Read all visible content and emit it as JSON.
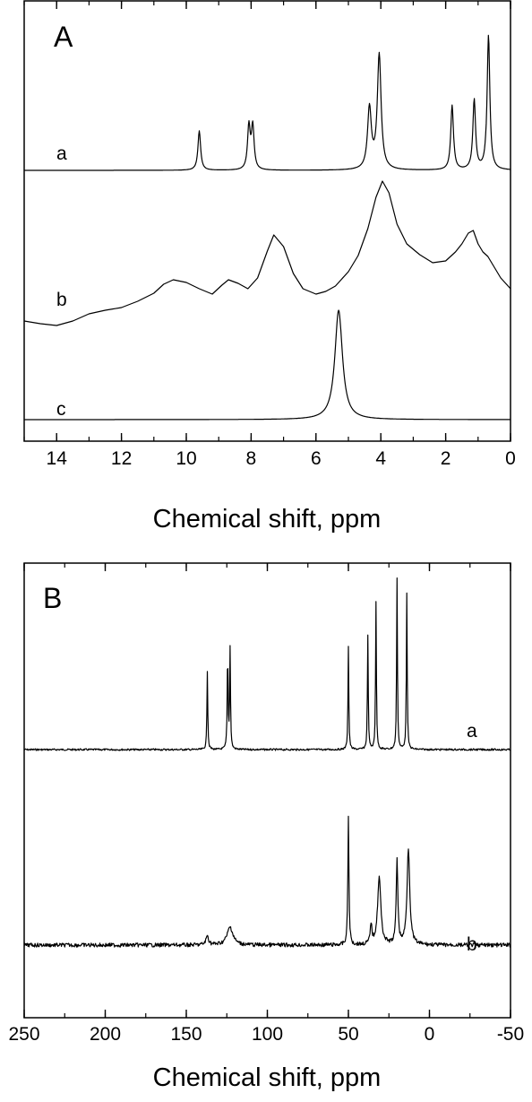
{
  "chart_data": [
    {
      "type": "line",
      "panel": "A",
      "xlabel": "Chemical shift, ppm",
      "ylabel": "",
      "xlim": [
        15,
        0
      ],
      "x_reversed": true,
      "x_ticks": [
        14,
        12,
        10,
        8,
        6,
        4,
        2,
        0
      ],
      "x_minor_step": 1,
      "grid": false,
      "series": [
        {
          "name": "a",
          "baseline": 0,
          "peaks": [
            {
              "x": 9.6,
              "h": 44,
              "w": 0.05
            },
            {
              "x": 8.07,
              "h": 48,
              "w": 0.05
            },
            {
              "x": 7.95,
              "h": 48,
              "w": 0.05
            },
            {
              "x": 4.35,
              "h": 68,
              "w": 0.07
            },
            {
              "x": 4.05,
              "h": 128,
              "w": 0.07
            },
            {
              "x": 1.8,
              "h": 72,
              "w": 0.05
            },
            {
              "x": 1.12,
              "h": 78,
              "w": 0.05
            },
            {
              "x": 0.68,
              "h": 150,
              "w": 0.05
            }
          ]
        },
        {
          "name": "b",
          "profile": [
            [
              15,
              358
            ],
            [
              14.5,
              361
            ],
            [
              14,
              363
            ],
            [
              13.5,
              358
            ],
            [
              13,
              350
            ],
            [
              12.5,
              346
            ],
            [
              12,
              343
            ],
            [
              11.5,
              336
            ],
            [
              11,
              327
            ],
            [
              10.7,
              317
            ],
            [
              10.4,
              312
            ],
            [
              10.0,
              315
            ],
            [
              9.6,
              322
            ],
            [
              9.2,
              328
            ],
            [
              8.9,
              318
            ],
            [
              8.7,
              312
            ],
            [
              8.4,
              316
            ],
            [
              8.1,
              322
            ],
            [
              7.8,
              310
            ],
            [
              7.5,
              280
            ],
            [
              7.3,
              262
            ],
            [
              7.0,
              275
            ],
            [
              6.7,
              305
            ],
            [
              6.4,
              322
            ],
            [
              6.0,
              328
            ],
            [
              5.7,
              325
            ],
            [
              5.4,
              319
            ],
            [
              5.0,
              303
            ],
            [
              4.7,
              285
            ],
            [
              4.4,
              255
            ],
            [
              4.15,
              220
            ],
            [
              3.95,
              202
            ],
            [
              3.75,
              215
            ],
            [
              3.5,
              250
            ],
            [
              3.2,
              272
            ],
            [
              2.8,
              284
            ],
            [
              2.4,
              293
            ],
            [
              2.0,
              291
            ],
            [
              1.7,
              281
            ],
            [
              1.5,
              272
            ],
            [
              1.3,
              260
            ],
            [
              1.15,
              257
            ],
            [
              1.0,
              272
            ],
            [
              0.85,
              281
            ],
            [
              0.7,
              286
            ],
            [
              0.5,
              298
            ],
            [
              0.3,
              310
            ],
            [
              0.1,
              318
            ],
            [
              0,
              322
            ]
          ]
        },
        {
          "name": "c",
          "baseline": 0,
          "peaks": [
            {
              "x": 5.3,
              "h": 122,
              "w": 0.14
            }
          ]
        }
      ]
    },
    {
      "type": "line",
      "panel": "B",
      "xlabel": "Chemical shift, ppm",
      "ylabel": "",
      "xlim": [
        250,
        -50
      ],
      "x_reversed": true,
      "x_ticks": [
        250,
        200,
        150,
        100,
        50,
        0,
        -50
      ],
      "x_minor_step": 25,
      "grid": false,
      "series": [
        {
          "name": "a",
          "baseline": 0,
          "peaks": [
            {
              "x": 137,
              "h": 88,
              "w": 0.3
            },
            {
              "x": 124.5,
              "h": 112,
              "w": 0.3
            },
            {
              "x": 123,
              "h": 112,
              "w": 0.3
            },
            {
              "x": 50,
              "h": 115,
              "w": 0.3
            },
            {
              "x": 38,
              "h": 128,
              "w": 0.3
            },
            {
              "x": 33,
              "h": 165,
              "w": 0.3
            },
            {
              "x": 20,
              "h": 190,
              "w": 0.3
            },
            {
              "x": 14,
              "h": 175,
              "w": 0.3
            }
          ]
        },
        {
          "name": "b",
          "baseline": 0,
          "peaks": [
            {
              "x": 137,
              "h": 10,
              "w": 1.0
            },
            {
              "x": 123,
              "h": 20,
              "w": 2.2
            },
            {
              "x": 50,
              "h": 142,
              "w": 0.4
            },
            {
              "x": 36,
              "h": 22,
              "w": 0.6
            },
            {
              "x": 31,
              "h": 75,
              "w": 1.2
            },
            {
              "x": 20,
              "h": 95,
              "w": 0.6
            },
            {
              "x": 13,
              "h": 108,
              "w": 1.0
            }
          ]
        }
      ]
    }
  ]
}
